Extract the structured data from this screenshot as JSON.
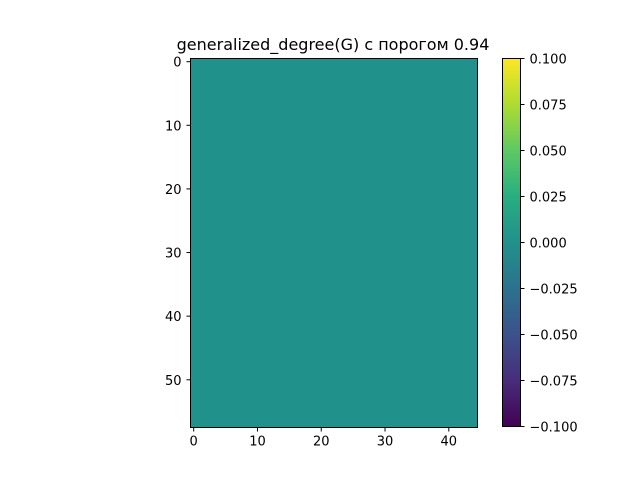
{
  "chart_data": {
    "type": "heatmap",
    "title": "generalized_degree(G) с порогом 0.94",
    "xlabel": "",
    "ylabel": "",
    "grid": false,
    "matrix": {
      "rows": 58,
      "cols": 45,
      "fill_value": 0.0
    },
    "x_ticks": [
      0,
      10,
      20,
      30,
      40
    ],
    "y_ticks": [
      0,
      10,
      20,
      30,
      40,
      50
    ],
    "xlim": [
      -0.5,
      44.5
    ],
    "ylim": [
      57.5,
      -0.5
    ],
    "colorbar": {
      "cmap": "viridis",
      "vmin": -0.1,
      "vmax": 0.1,
      "ticks": [
        -0.1,
        -0.075,
        -0.05,
        -0.025,
        0.0,
        0.025,
        0.05,
        0.075,
        0.1
      ],
      "tick_labels": [
        "−0.100",
        "−0.075",
        "−0.050",
        "−0.025",
        "0.000",
        "0.025",
        "0.050",
        "0.075",
        "0.100"
      ]
    },
    "colors": {
      "fill": "#21918c"
    }
  }
}
